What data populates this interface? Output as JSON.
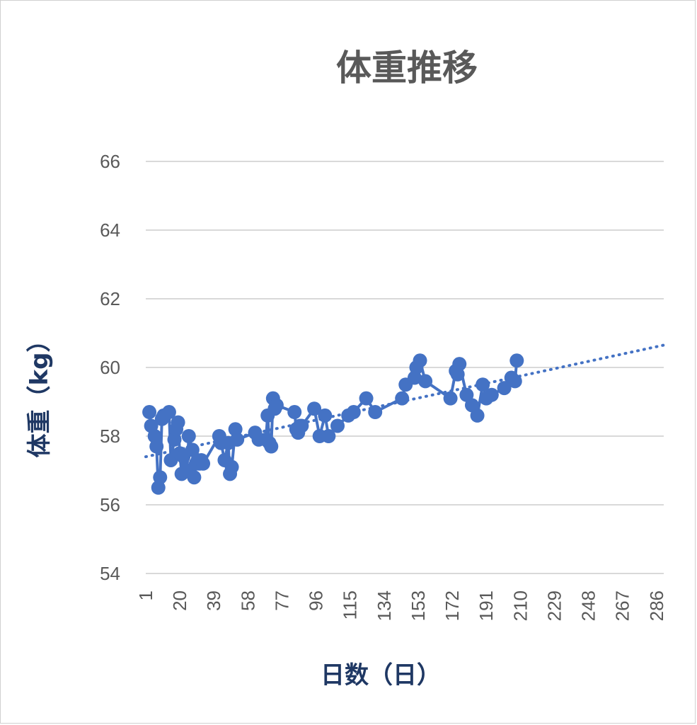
{
  "chart_data": {
    "type": "line",
    "title": "体重推移",
    "xlabel": "日数（日）",
    "ylabel": "体重（kg）",
    "ylim": [
      54,
      66
    ],
    "yticks": [
      "54",
      "56",
      "58",
      "60",
      "62",
      "64",
      "66"
    ],
    "xlim": [
      1,
      290
    ],
    "xticks": [
      "1",
      "20",
      "39",
      "58",
      "77",
      "96",
      "115",
      "134",
      "153",
      "172",
      "191",
      "210",
      "229",
      "248",
      "267",
      "286"
    ],
    "grid": true,
    "legend": "none",
    "colors": {
      "series": "#4472c4",
      "grid": "#d9d9d9",
      "tick_text": "#595959",
      "axis_title": "#1f3864"
    },
    "series": [
      {
        "x": [
          3,
          4,
          6,
          7,
          8,
          9,
          10,
          11,
          14,
          15,
          17,
          18,
          19,
          20,
          21,
          22,
          24,
          25,
          27,
          28,
          29,
          30,
          31,
          32,
          33,
          42,
          43,
          45,
          47,
          48,
          49,
          51,
          52,
          62,
          64,
          68,
          69,
          70,
          71,
          72,
          73,
          74,
          84,
          85,
          86,
          87,
          88,
          95,
          98,
          101,
          103,
          108,
          114,
          117,
          124,
          129,
          144,
          146,
          151,
          152,
          154,
          157,
          171,
          174,
          175,
          176,
          180,
          183,
          186,
          189,
          191,
          194,
          201,
          205,
          207,
          208
        ],
        "y": [
          58.7,
          58.3,
          58.0,
          57.7,
          56.5,
          56.8,
          58.5,
          58.6,
          58.7,
          57.3,
          57.9,
          58.2,
          58.4,
          57.5,
          56.9,
          57.4,
          57.0,
          58.0,
          57.6,
          56.8,
          57.2,
          57.3,
          57.2,
          57.3,
          57.2,
          58.0,
          57.8,
          57.3,
          57.8,
          56.9,
          57.1,
          58.2,
          57.9,
          58.1,
          57.9,
          57.9,
          58.6,
          57.8,
          57.7,
          59.1,
          58.8,
          58.9,
          58.7,
          58.2,
          58.1,
          58.3,
          58.3,
          58.8,
          58.0,
          58.6,
          58.0,
          58.3,
          58.6,
          58.7,
          59.1,
          58.7,
          59.1,
          59.5,
          59.7,
          60.0,
          60.2,
          59.6,
          59.1,
          59.9,
          59.8,
          60.1,
          59.2,
          58.9,
          58.6,
          59.5,
          59.1,
          59.2,
          59.4,
          59.7,
          59.6,
          60.2
        ]
      }
    ],
    "trendline": {
      "style": "dotted",
      "x": [
        1,
        290
      ],
      "y": [
        57.4,
        60.65
      ]
    }
  }
}
